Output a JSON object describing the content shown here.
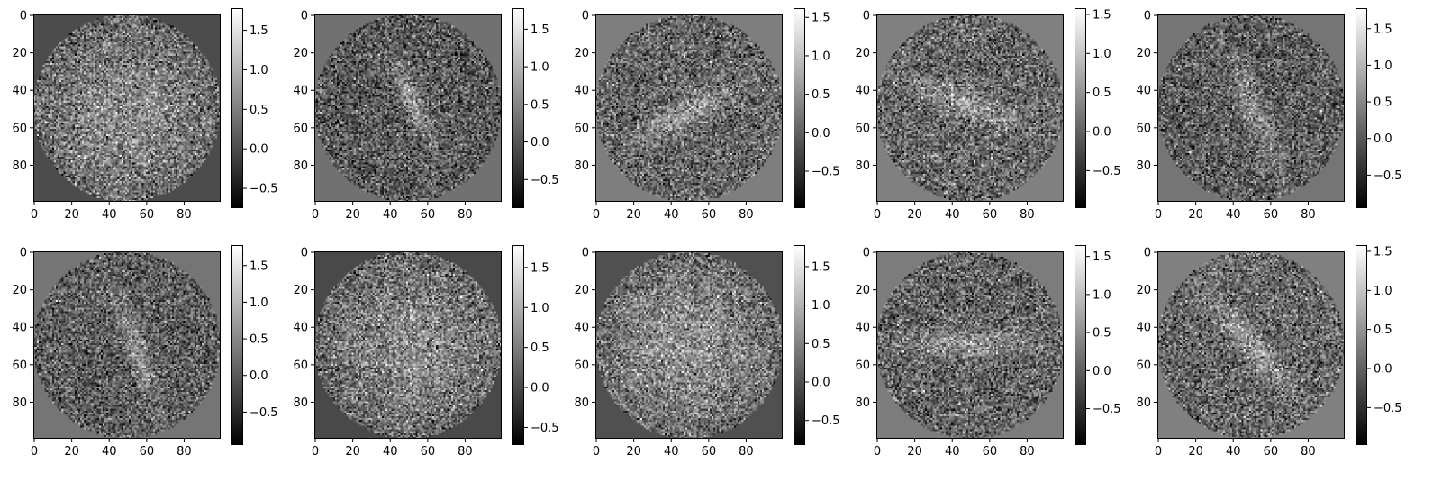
{
  "colors": {
    "background": "#ffffff",
    "axis": "#000000",
    "colormap": "gray"
  },
  "chart_data": [
    {
      "type": "heatmap",
      "panel": 1,
      "shape": "disk",
      "background_value": -0.0,
      "blob": {
        "center_row": 52,
        "center_col": 50,
        "major_length": 95,
        "minor_length": 95,
        "orientation_deg": 0,
        "amplitude": 1.0
      },
      "x_ticks": [
        "0",
        "20",
        "40",
        "60",
        "80"
      ],
      "y_ticks": [
        "0",
        "20",
        "40",
        "60",
        "80"
      ],
      "xlim": [
        0,
        99
      ],
      "ylim": [
        99,
        0
      ],
      "colorbar": {
        "min": -0.75,
        "max": 1.78,
        "ticks": [
          "-0.5",
          "0.0",
          "0.5",
          "1.0",
          "1.5"
        ]
      }
    },
    {
      "type": "heatmap",
      "panel": 2,
      "shape": "disk",
      "background_value": 0.3,
      "blob": {
        "center_row": 47,
        "center_col": 53,
        "major_length": 42,
        "minor_length": 10,
        "orientation_deg": 66,
        "amplitude": 1.0
      },
      "x_ticks": [
        "0",
        "20",
        "40",
        "60",
        "80"
      ],
      "y_ticks": [
        "0",
        "20",
        "40",
        "60",
        "80"
      ],
      "xlim": [
        0,
        99
      ],
      "ylim": [
        99,
        0
      ],
      "colorbar": {
        "min": -0.88,
        "max": 1.78,
        "ticks": [
          "-0.5",
          "0.0",
          "0.5",
          "1.0",
          "1.5"
        ]
      }
    },
    {
      "type": "heatmap",
      "panel": 3,
      "shape": "disk",
      "background_value": 0.3,
      "blob": {
        "center_row": 53,
        "center_col": 47,
        "major_length": 56,
        "minor_length": 12,
        "orientation_deg": -28,
        "amplitude": 1.0
      },
      "x_ticks": [
        "0",
        "20",
        "40",
        "60",
        "80"
      ],
      "y_ticks": [
        "0",
        "20",
        "40",
        "60",
        "80"
      ],
      "xlim": [
        0,
        99
      ],
      "ylim": [
        99,
        0
      ],
      "colorbar": {
        "min": -0.98,
        "max": 1.62,
        "ticks": [
          "-0.5",
          "0.0",
          "0.5",
          "1.0",
          "1.5"
        ]
      }
    },
    {
      "type": "heatmap",
      "panel": 4,
      "shape": "disk",
      "background_value": 0.3,
      "blob": {
        "center_row": 47,
        "center_col": 47,
        "major_length": 52,
        "minor_length": 12,
        "orientation_deg": 22,
        "amplitude": 1.0
      },
      "x_ticks": [
        "0",
        "20",
        "40",
        "60",
        "80"
      ],
      "y_ticks": [
        "0",
        "20",
        "40",
        "60",
        "80"
      ],
      "xlim": [
        0,
        99
      ],
      "ylim": [
        99,
        0
      ],
      "colorbar": {
        "min": -0.98,
        "max": 1.58,
        "ticks": [
          "-0.5",
          "0.0",
          "0.5",
          "1.0",
          "1.5"
        ]
      }
    },
    {
      "type": "heatmap",
      "panel": 5,
      "shape": "disk",
      "background_value": 0.3,
      "blob": {
        "center_row": 52,
        "center_col": 52,
        "major_length": 55,
        "minor_length": 12,
        "orientation_deg": 68,
        "amplitude": 0.9
      },
      "x_ticks": [
        "0",
        "20",
        "40",
        "60",
        "80"
      ],
      "y_ticks": [
        "0",
        "20",
        "40",
        "60",
        "80"
      ],
      "xlim": [
        0,
        99
      ],
      "ylim": [
        99,
        0
      ],
      "colorbar": {
        "min": -0.95,
        "max": 1.78,
        "ticks": [
          "-0.5",
          "0.0",
          "0.5",
          "1.0",
          "1.5"
        ]
      }
    },
    {
      "type": "heatmap",
      "panel": 6,
      "shape": "disk",
      "background_value": 0.3,
      "blob": {
        "center_row": 52,
        "center_col": 54,
        "major_length": 60,
        "minor_length": 10,
        "orientation_deg": 70,
        "amplitude": 1.0
      },
      "x_ticks": [
        "0",
        "20",
        "40",
        "60",
        "80"
      ],
      "y_ticks": [
        "0",
        "20",
        "40",
        "60",
        "80"
      ],
      "xlim": [
        0,
        99
      ],
      "ylim": [
        99,
        0
      ],
      "colorbar": {
        "min": -0.95,
        "max": 1.78,
        "ticks": [
          "-0.5",
          "0.0",
          "0.5",
          "1.0",
          "1.5"
        ]
      }
    },
    {
      "type": "heatmap",
      "panel": 7,
      "shape": "disk",
      "background_value": -0.0,
      "blob": {
        "center_row": 50,
        "center_col": 52,
        "major_length": 95,
        "minor_length": 95,
        "orientation_deg": 0,
        "amplitude": 1.0
      },
      "x_ticks": [
        "0",
        "20",
        "40",
        "60",
        "80"
      ],
      "y_ticks": [
        "0",
        "20",
        "40",
        "60",
        "80"
      ],
      "xlim": [
        0,
        99
      ],
      "ylim": [
        99,
        0
      ],
      "colorbar": {
        "min": -0.72,
        "max": 1.78,
        "ticks": [
          "-0.5",
          "0.0",
          "0.5",
          "1.0",
          "1.5"
        ]
      }
    },
    {
      "type": "heatmap",
      "panel": 8,
      "shape": "disk",
      "background_value": 0.0,
      "blob": {
        "center_row": 50,
        "center_col": 48,
        "major_length": 95,
        "minor_length": 95,
        "orientation_deg": 0,
        "amplitude": 1.0
      },
      "x_ticks": [
        "0",
        "20",
        "40",
        "60",
        "80"
      ],
      "y_ticks": [
        "0",
        "20",
        "40",
        "60",
        "80"
      ],
      "xlim": [
        0,
        99
      ],
      "ylim": [
        99,
        0
      ],
      "colorbar": {
        "min": -0.82,
        "max": 1.78,
        "ticks": [
          "-0.5",
          "0.0",
          "0.5",
          "1.0",
          "1.5"
        ]
      }
    },
    {
      "type": "heatmap",
      "panel": 9,
      "shape": "disk",
      "background_value": 0.3,
      "blob": {
        "center_row": 48,
        "center_col": 48,
        "major_length": 60,
        "minor_length": 12,
        "orientation_deg": 0,
        "amplitude": 1.0
      },
      "x_ticks": [
        "0",
        "20",
        "40",
        "60",
        "80"
      ],
      "y_ticks": [
        "0",
        "20",
        "40",
        "60",
        "80"
      ],
      "xlim": [
        0,
        99
      ],
      "ylim": [
        99,
        0
      ],
      "colorbar": {
        "min": -0.98,
        "max": 1.65,
        "ticks": [
          "-0.5",
          "0.0",
          "0.5",
          "1.0",
          "1.5"
        ]
      }
    },
    {
      "type": "heatmap",
      "panel": 10,
      "shape": "disk",
      "background_value": 0.3,
      "blob": {
        "center_row": 50,
        "center_col": 50,
        "major_length": 56,
        "minor_length": 12,
        "orientation_deg": 50,
        "amplitude": 0.9
      },
      "x_ticks": [
        "0",
        "20",
        "40",
        "60",
        "80"
      ],
      "y_ticks": [
        "0",
        "20",
        "40",
        "60",
        "80"
      ],
      "xlim": [
        0,
        99
      ],
      "ylim": [
        99,
        0
      ],
      "colorbar": {
        "min": -0.98,
        "max": 1.58,
        "ticks": [
          "-0.5",
          "0.0",
          "0.5",
          "1.0",
          "1.5"
        ]
      }
    }
  ]
}
